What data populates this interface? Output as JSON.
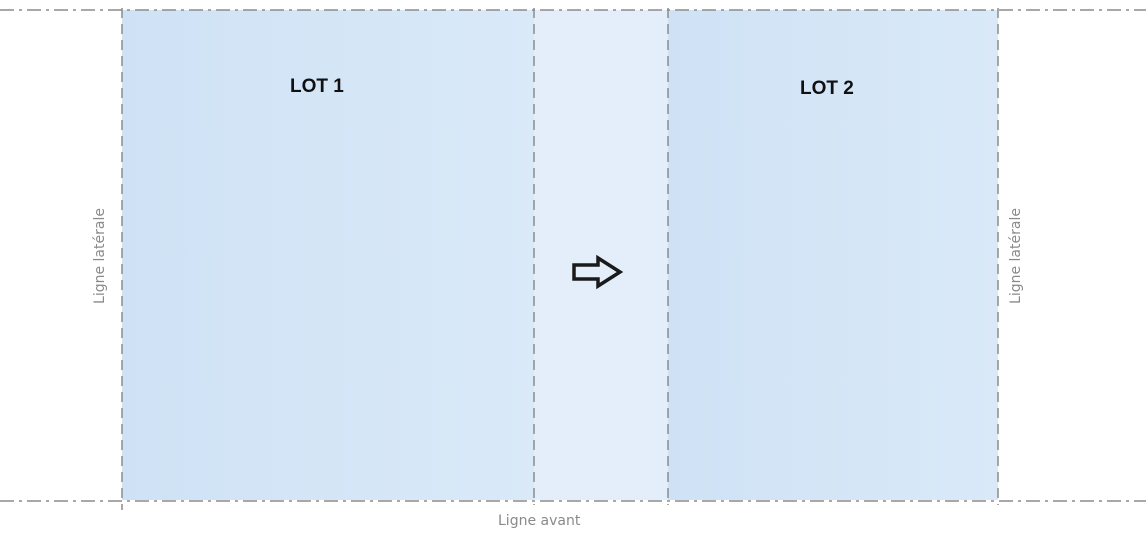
{
  "lots": [
    {
      "label": "LOT 1"
    },
    {
      "label": "LOT 2"
    }
  ],
  "labels": {
    "left_side": "Ligne latérale",
    "right_side": "Ligne latérale",
    "front": "Ligne avant"
  },
  "colors": {
    "lot_fill": "#cfe3f6",
    "middle_fill": "#e2eefa",
    "dashed_line": "#8c8c8c",
    "arrow": "#1a1a1a"
  },
  "icons": {
    "arrow": "right-arrow-icon"
  }
}
